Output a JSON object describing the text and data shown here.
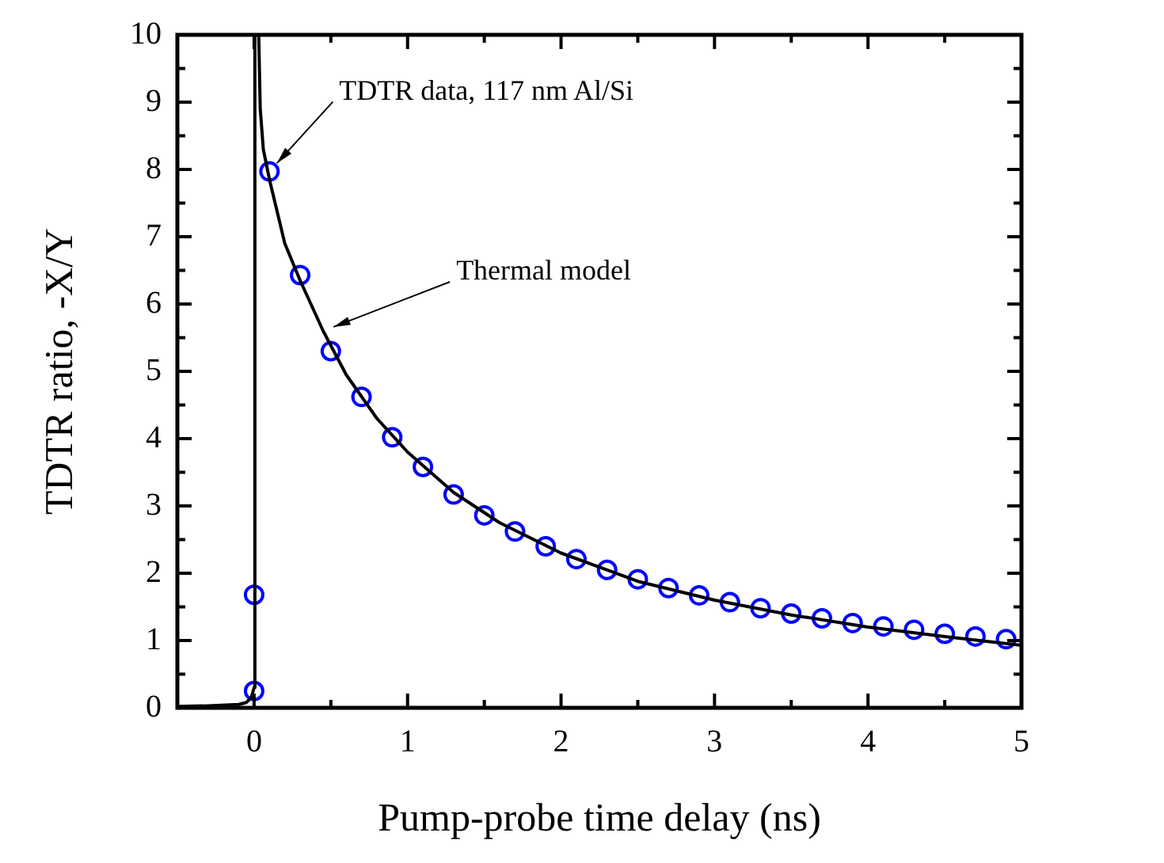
{
  "chart_data": {
    "type": "scatter",
    "xlabel": "Pump-probe time delay (ns)",
    "ylabel": "TDTR ratio, -X/Y",
    "xlim": [
      -0.5,
      5
    ],
    "ylim": [
      0,
      10
    ],
    "xticks": [
      {
        "value": -0.5,
        "label": null
      },
      0,
      {
        "value": 0.5,
        "label": null
      },
      1,
      {
        "value": 1.5,
        "label": null
      },
      2,
      {
        "value": 2.5,
        "label": null
      },
      3,
      {
        "value": 3.5,
        "label": null
      },
      4,
      {
        "value": 4.5,
        "label": null
      },
      5
    ],
    "yticks": [
      0,
      {
        "value": 0.5,
        "label": null
      },
      1,
      {
        "value": 1.5,
        "label": null
      },
      2,
      {
        "value": 2.5,
        "label": null
      },
      3,
      {
        "value": 3.5,
        "label": null
      },
      4,
      {
        "value": 4.5,
        "label": null
      },
      5,
      {
        "value": 5.5,
        "label": null
      },
      6,
      {
        "value": 6.5,
        "label": null
      },
      7,
      {
        "value": 7.5,
        "label": null
      },
      8,
      {
        "value": 8.5,
        "label": null
      },
      9,
      {
        "value": 9.5,
        "label": null
      },
      10
    ],
    "grid": false,
    "legend": false,
    "annotations": [
      {
        "text": "TDTR data, 117 nm Al/Si",
        "x": 0.1,
        "y": 7.97
      },
      {
        "text": "Thermal model",
        "x": 0.45,
        "y": 5.6
      }
    ],
    "series": [
      {
        "type": "line",
        "color": "#000000",
        "marker": "none",
        "line_style": "solid",
        "x": [
          -0.5,
          -0.3,
          -0.1,
          -0.05,
          -0.02,
          -0.01,
          0,
          0.005,
          null,
          0.03,
          0.04,
          0.06,
          0.1,
          0.2,
          0.3,
          0.45,
          0.6,
          0.8,
          1.0,
          1.3,
          1.6,
          2.0,
          2.5,
          3.0,
          3.5,
          4.0,
          4.5,
          5.0
        ],
        "values": [
          0.02,
          0.03,
          0.05,
          0.08,
          0.15,
          0.22,
          0.3,
          10,
          null,
          10,
          8.9,
          8.3,
          7.85,
          6.9,
          6.35,
          5.6,
          4.95,
          4.3,
          3.8,
          3.2,
          2.75,
          2.3,
          1.88,
          1.6,
          1.38,
          1.2,
          1.06,
          0.93
        ]
      },
      {
        "type": "scatter",
        "color": "#0000ff",
        "marker": "circle",
        "x": [
          0,
          0,
          0.1,
          0.3,
          0.5,
          0.7,
          0.9,
          1.1,
          1.3,
          1.5,
          1.7,
          1.9,
          2.1,
          2.3,
          2.5,
          2.7,
          2.9,
          3.1,
          3.3,
          3.5,
          3.7,
          3.9,
          4.1,
          4.3,
          4.5,
          4.7,
          4.9
        ],
        "values": [
          0.25,
          1.68,
          7.97,
          6.43,
          5.3,
          4.62,
          4.02,
          3.58,
          3.17,
          2.86,
          2.62,
          2.4,
          2.21,
          2.05,
          1.91,
          1.78,
          1.67,
          1.57,
          1.48,
          1.4,
          1.33,
          1.26,
          1.21,
          1.16,
          1.1,
          1.06,
          1.02
        ]
      }
    ]
  }
}
